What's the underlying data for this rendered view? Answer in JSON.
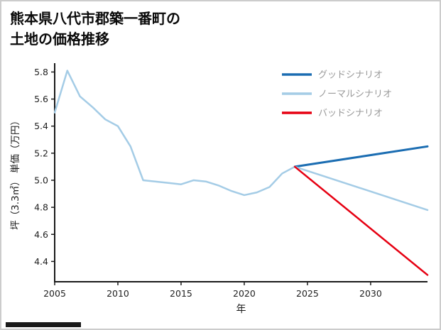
{
  "page": {
    "title_lines": [
      "熊本県八代市郡築一番町の",
      "土地の価格推移"
    ]
  },
  "chart_data": {
    "type": "line",
    "title": "熊本県八代市郡築一番町の 土地の価格推移",
    "xlabel": "年",
    "ylabel": "坪（3.3㎡） 単価（万円）",
    "xlim": [
      2005,
      2034.5
    ],
    "ylim": [
      4.25,
      5.86
    ],
    "xticks": [
      2005,
      2010,
      2015,
      2020,
      2025,
      2030
    ],
    "yticks": [
      4.4,
      4.6,
      4.8,
      5.0,
      5.2,
      5.4,
      5.6,
      5.8
    ],
    "grid": false,
    "legend_position": "upper-right",
    "axis_color": "#1a1a1a",
    "tick_label_color": "#1f1f1f",
    "legend_text_color": "#9a9a9a",
    "series": [
      {
        "name": "グッドシナリオ",
        "color": "#1b6db2",
        "width": 3,
        "x": [
          2024,
          2034.5
        ],
        "y": [
          5.1,
          5.25
        ]
      },
      {
        "name": "ノーマルシナリオ",
        "color": "#a4cce6",
        "width": 2.5,
        "x": [
          2005,
          2006,
          2007,
          2008,
          2009,
          2010,
          2011,
          2012,
          2013,
          2014,
          2015,
          2016,
          2017,
          2018,
          2019,
          2020,
          2021,
          2022,
          2023,
          2024,
          2034.5
        ],
        "y": [
          5.5,
          5.81,
          5.62,
          5.54,
          5.45,
          5.4,
          5.25,
          5.0,
          4.99,
          4.98,
          4.97,
          5.0,
          4.99,
          4.96,
          4.92,
          4.89,
          4.91,
          4.95,
          5.05,
          5.1,
          4.78
        ]
      },
      {
        "name": "バッドシナリオ",
        "color": "#e60012",
        "width": 2.5,
        "x": [
          2024,
          2034.5
        ],
        "y": [
          5.1,
          4.3
        ]
      }
    ]
  }
}
